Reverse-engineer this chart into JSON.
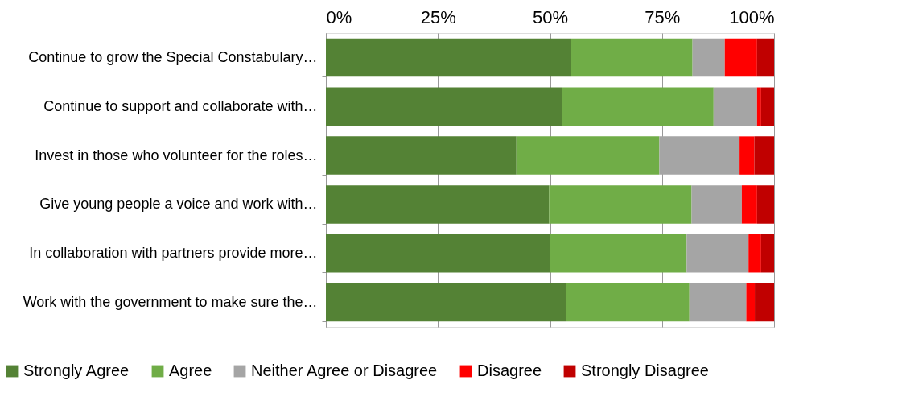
{
  "chart_data": {
    "type": "bar",
    "orientation": "horizontal",
    "stacked": true,
    "categories": [
      "Continue to grow the Special Constabulary…",
      "Continue to support and collaborate with…",
      "Invest in those who volunteer for the roles…",
      "Give young people a voice and work with…",
      "In collaboration with partners provide more…",
      "Work with the government to make sure the…"
    ],
    "series": [
      {
        "name": "Strongly Agree",
        "color": "#548235",
        "values": [
          54.7,
          52.7,
          42.5,
          49.8,
          50.0,
          53.5
        ]
      },
      {
        "name": "Agree",
        "color": "#70ad47",
        "values": [
          27.1,
          33.8,
          31.9,
          31.8,
          30.5,
          27.6
        ]
      },
      {
        "name": "Neither Agree or Disagree",
        "color": "#a5a5a5",
        "values": [
          7.2,
          9.7,
          17.9,
          11.2,
          13.8,
          12.7
        ]
      },
      {
        "name": "Disagree",
        "color": "#ff0000",
        "values": [
          7.2,
          0.9,
          3.3,
          3.4,
          2.8,
          1.9
        ]
      },
      {
        "name": "Strongly Disagree",
        "color": "#c00000",
        "values": [
          3.8,
          2.9,
          4.4,
          3.8,
          2.9,
          4.3
        ]
      }
    ],
    "xlim": [
      0,
      100
    ],
    "xticks": [
      {
        "value": 0,
        "label": "0%"
      },
      {
        "value": 25,
        "label": "25%"
      },
      {
        "value": 50,
        "label": "50%"
      },
      {
        "value": 75,
        "label": "75%"
      },
      {
        "value": 100,
        "label": "100%"
      }
    ],
    "grid": "x",
    "legend": "bottom"
  }
}
